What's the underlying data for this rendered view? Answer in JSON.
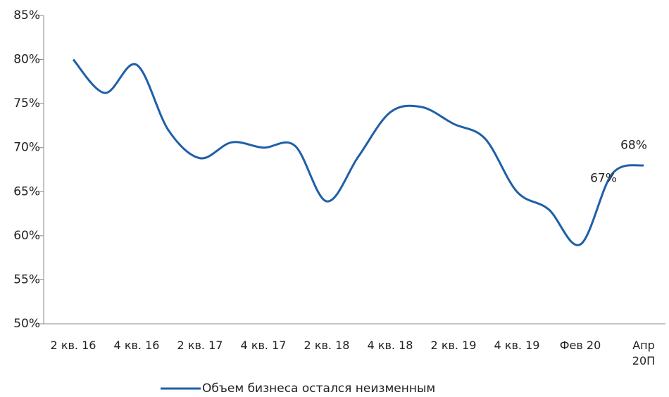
{
  "chart_data": {
    "type": "line",
    "categories": [
      "2 кв. 16",
      null,
      "4 кв. 16",
      null,
      "2 кв. 17",
      null,
      "4 кв. 17",
      null,
      "2 кв. 18",
      null,
      "4 кв. 18",
      null,
      "2 кв. 19",
      null,
      "4 кв. 19",
      null,
      "Фев 20",
      null,
      "Апр 20П"
    ],
    "series": [
      {
        "name": "Объем бизнеса остался неизменным",
        "color": "#1f5fa8",
        "values": [
          80,
          76.2,
          79.4,
          72,
          68.8,
          70.6,
          70,
          70.2,
          63.9,
          69,
          74,
          74.6,
          72.7,
          71,
          65,
          63,
          59,
          67,
          68
        ],
        "value_labels": [
          null,
          null,
          null,
          null,
          null,
          null,
          null,
          null,
          null,
          null,
          null,
          null,
          null,
          null,
          null,
          null,
          null,
          "67%",
          "68%"
        ]
      }
    ],
    "ylim": [
      50,
      85
    ],
    "yticks": [
      {
        "value": 50,
        "label": "50%"
      },
      {
        "value": 55,
        "label": "55%"
      },
      {
        "value": 60,
        "label": "60%"
      },
      {
        "value": 65,
        "label": "65%"
      },
      {
        "value": 70,
        "label": "70%"
      },
      {
        "value": 75,
        "label": "75%"
      },
      {
        "value": 80,
        "label": "80%"
      },
      {
        "value": 85,
        "label": "85%"
      }
    ],
    "legend": "bottom"
  }
}
